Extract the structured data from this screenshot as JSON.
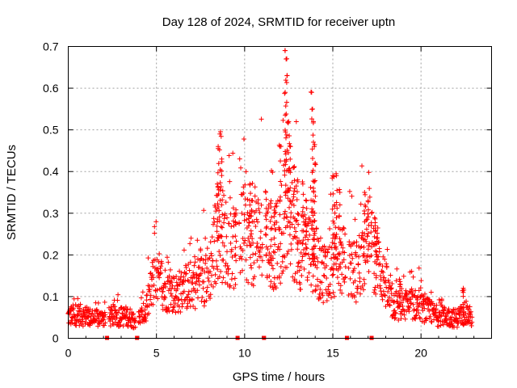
{
  "chart_data": {
    "type": "scatter",
    "title": "Day 128 of 2024, SRMTID for receiver uptn",
    "xlabel": "GPS time / hours",
    "ylabel": "SRMTID / TECUs",
    "xlim": [
      0,
      24
    ],
    "ylim": [
      0,
      0.7
    ],
    "xticks": [
      0,
      5,
      10,
      15,
      20
    ],
    "yticks": [
      0,
      0.1,
      0.2,
      0.3,
      0.4,
      0.5,
      0.6,
      0.7
    ],
    "xtick_labels": [
      "0",
      "5",
      "10",
      "15",
      "20"
    ],
    "ytick_labels": [
      "0",
      "0.1",
      "0.2",
      "0.3",
      "0.4",
      "0.5",
      "0.6",
      "0.7"
    ],
    "grid": true,
    "marker": "+",
    "color": "#ff0000",
    "envelope": [
      [
        0.0,
        0.05
      ],
      [
        0.5,
        0.055
      ],
      [
        1.0,
        0.05
      ],
      [
        1.5,
        0.045
      ],
      [
        1.9,
        0.045
      ],
      [
        2.5,
        0.05
      ],
      [
        3.4,
        0.05
      ],
      [
        3.9,
        0.04
      ],
      [
        4.4,
        0.06
      ],
      [
        4.8,
        0.13
      ],
      [
        5.3,
        0.12
      ],
      [
        6.0,
        0.1
      ],
      [
        6.8,
        0.12
      ],
      [
        7.5,
        0.13
      ],
      [
        8.0,
        0.15
      ],
      [
        8.5,
        0.25
      ],
      [
        9.0,
        0.22
      ],
      [
        9.5,
        0.2
      ],
      [
        10.0,
        0.24
      ],
      [
        10.5,
        0.22
      ],
      [
        11.0,
        0.24
      ],
      [
        11.5,
        0.2
      ],
      [
        12.0,
        0.22
      ],
      [
        12.3,
        0.3
      ],
      [
        12.7,
        0.25
      ],
      [
        13.2,
        0.2
      ],
      [
        13.8,
        0.2
      ],
      [
        14.3,
        0.15
      ],
      [
        14.8,
        0.16
      ],
      [
        15.3,
        0.18
      ],
      [
        15.8,
        0.17
      ],
      [
        16.3,
        0.15
      ],
      [
        16.8,
        0.2
      ],
      [
        17.3,
        0.2
      ],
      [
        17.8,
        0.15
      ],
      [
        18.3,
        0.08
      ],
      [
        19.0,
        0.07
      ],
      [
        19.5,
        0.08
      ],
      [
        20.0,
        0.07
      ],
      [
        20.5,
        0.06
      ],
      [
        21.0,
        0.05
      ],
      [
        21.5,
        0.05
      ],
      [
        22.0,
        0.045
      ],
      [
        22.5,
        0.06
      ],
      [
        22.9,
        0.045
      ]
    ],
    "spikes": [
      [
        8.6,
        0.49
      ],
      [
        8.5,
        0.46
      ],
      [
        8.7,
        0.43
      ],
      [
        8.45,
        0.37
      ],
      [
        9.5,
        0.3
      ],
      [
        10.3,
        0.37
      ],
      [
        10.4,
        0.33
      ],
      [
        11.2,
        0.35
      ],
      [
        11.5,
        0.33
      ],
      [
        11.7,
        0.3
      ],
      [
        12.0,
        0.46
      ],
      [
        12.3,
        0.69
      ],
      [
        12.35,
        0.67
      ],
      [
        12.4,
        0.63
      ],
      [
        12.3,
        0.59
      ],
      [
        12.5,
        0.52
      ],
      [
        12.6,
        0.46
      ],
      [
        12.8,
        0.41
      ],
      [
        13.0,
        0.38
      ],
      [
        13.3,
        0.37
      ],
      [
        13.5,
        0.33
      ],
      [
        13.8,
        0.59
      ],
      [
        13.85,
        0.55
      ],
      [
        13.9,
        0.52
      ],
      [
        13.95,
        0.46
      ],
      [
        14.0,
        0.42
      ],
      [
        13.9,
        0.36
      ],
      [
        15.0,
        0.39
      ],
      [
        15.2,
        0.39
      ],
      [
        15.4,
        0.35
      ],
      [
        15.1,
        0.32
      ],
      [
        16.8,
        0.35
      ],
      [
        17.0,
        0.33
      ],
      [
        17.2,
        0.3
      ],
      [
        17.4,
        0.27
      ],
      [
        17.5,
        0.24
      ],
      [
        18.8,
        0.13
      ],
      [
        22.4,
        0.12
      ]
    ],
    "data_gaps_hours": [
      2.2,
      3.9,
      9.6,
      11.1,
      15.8,
      17.2
    ]
  }
}
